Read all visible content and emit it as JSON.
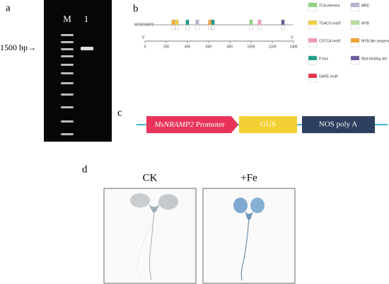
{
  "panels": {
    "a": {
      "label": "a",
      "lane_labels": [
        "M",
        "1"
      ],
      "size_marker": "1500 bp→"
    },
    "b": {
      "label": "b",
      "gene": "MsNRAMP2",
      "end5": "5'",
      "end3": "3'",
      "xlim": [
        0,
        1400
      ],
      "xticks": [
        0,
        200,
        400,
        600,
        800,
        1000,
        1200,
        1400
      ],
      "motifs": [
        {
          "name": "TCA-element",
          "color": "#8fd47e"
        },
        {
          "name": "MRE",
          "color": "#b9b1d6"
        },
        {
          "name": "TGACG-motif",
          "color": "#f4d03f"
        },
        {
          "name": "MYB",
          "color": "#b6dea0"
        },
        {
          "name": "CGTCA-motif",
          "color": "#f29bb6"
        },
        {
          "name": "MYB-like sequence",
          "color": "#f0a330"
        },
        {
          "name": "P-box",
          "color": "#1f9e8a"
        },
        {
          "name": "Myb-binding site",
          "color": "#6b5b9b"
        },
        {
          "name": "GARE-motif",
          "color": "#e8344f"
        }
      ],
      "sites": [
        {
          "position": 267,
          "motif": "MYB-like sequence"
        },
        {
          "position": 300,
          "motif": "TGACG-motif"
        },
        {
          "position": 400,
          "motif": "P-box"
        },
        {
          "position": 493,
          "motif": "MRE"
        },
        {
          "position": 613,
          "motif": "MYB-like sequence"
        },
        {
          "position": 640,
          "motif": "P-box"
        },
        {
          "position": 1000,
          "motif": "TCA-element"
        },
        {
          "position": 1080,
          "motif": "CGTCA-motif"
        },
        {
          "position": 1300,
          "motif": "Myb-binding site"
        }
      ]
    },
    "c": {
      "label": "c",
      "promoter_gene": "MsNRAMP2",
      "promoter_word": " Promoter",
      "reporter": "GUS",
      "terminator": "NOS poly A"
    },
    "d": {
      "label": "d",
      "conditions": [
        "CK",
        "+Fe"
      ]
    }
  }
}
